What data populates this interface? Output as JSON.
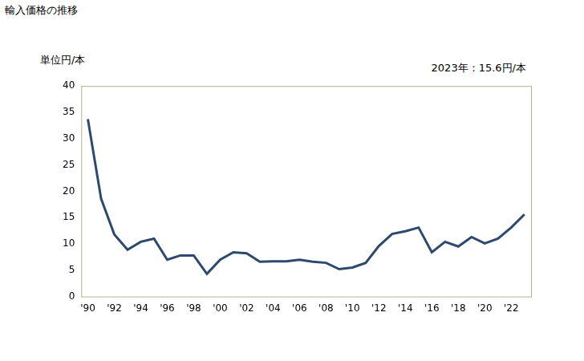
{
  "chart_data": {
    "type": "line",
    "title": "輸入価格の推移",
    "y_label": "単位円/本",
    "annotation": "2023年：15.6円/本",
    "categories": [
      "'90",
      null,
      "'92",
      null,
      "'94",
      null,
      "'96",
      null,
      "'98",
      null,
      "'00",
      null,
      "'02",
      null,
      "'04",
      null,
      "'06",
      null,
      "'08",
      null,
      "'10",
      null,
      "'12",
      null,
      "'14",
      null,
      "'16",
      null,
      "'18",
      null,
      "'20",
      null,
      "'22",
      null
    ],
    "values": [
      33.7,
      18.6,
      11.8,
      8.9,
      10.4,
      11.0,
      7.0,
      7.8,
      7.8,
      4.3,
      7.0,
      8.4,
      8.2,
      6.6,
      6.7,
      6.7,
      7.0,
      6.6,
      6.4,
      5.2,
      5.5,
      6.4,
      9.6,
      11.9,
      12.4,
      13.1,
      8.4,
      10.4,
      9.5,
      11.3,
      10.1,
      11.0,
      13.1,
      15.6
    ],
    "color": "#2d4a6e",
    "ylim": [
      0,
      40
    ],
    "yticks": [
      0,
      5,
      10,
      15,
      20,
      25,
      30,
      35,
      40
    ],
    "grid": false
  }
}
